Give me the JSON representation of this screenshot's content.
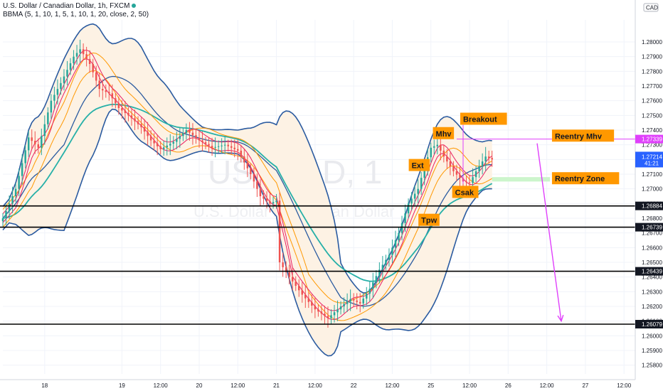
{
  "header": {
    "title": "U.S. Dollar / Canadian Dollar, 1h, FXCM",
    "indicator": "BBMA (5, 1, 10, 1, 5, 1, 10, 1, 20, close, 2, 50)"
  },
  "watermark": {
    "symbol": "USDCAD, 1",
    "name": "U.S. Dollar / Canadian Dollar"
  },
  "axis": {
    "currency": "CAD",
    "ymin": 1.2575,
    "ymax": 1.2815,
    "y_ticks": [
      "1.28000",
      "1.27900",
      "1.27800",
      "1.27700",
      "1.27600",
      "1.27500",
      "1.27400",
      "1.27300",
      "1.27200",
      "1.27100",
      "1.27000",
      "1.26900",
      "1.26800",
      "1.26700",
      "1.26600",
      "1.26500",
      "1.26400",
      "1.26300",
      "1.26200",
      "1.26100",
      "1.26000",
      "1.25900",
      "1.25800"
    ],
    "x_ticks": [
      "18",
      "19",
      "12:00",
      "20",
      "12:00",
      "21",
      "12:00",
      "22",
      "12:00",
      "25",
      "12:00",
      "26",
      "12:00",
      "27",
      "12:00"
    ],
    "x_tick_hours": [
      0,
      24,
      36,
      48,
      60,
      72,
      84,
      96,
      108,
      120,
      132,
      144,
      156,
      168,
      180
    ],
    "x_range_hours": [
      -13,
      181.5
    ]
  },
  "chart_data": {
    "type": "candlestick",
    "title": "U.S. Dollar / Canadian Dollar, 1h, FXCM",
    "xlabel": "",
    "ylabel": "",
    "close_path": [
      [
        -13,
        1.268
      ],
      [
        -9,
        1.27
      ],
      [
        -5,
        1.2735
      ],
      [
        -2,
        1.2728
      ],
      [
        2,
        1.276
      ],
      [
        5,
        1.2772
      ],
      [
        9,
        1.279
      ],
      [
        11,
        1.2795
      ],
      [
        14,
        1.2785
      ],
      [
        17,
        1.2768
      ],
      [
        20,
        1.2765
      ],
      [
        23,
        1.2755
      ],
      [
        26,
        1.275
      ],
      [
        30,
        1.2742
      ],
      [
        33,
        1.2733
      ],
      [
        36,
        1.2727
      ],
      [
        40,
        1.2732
      ],
      [
        44,
        1.274
      ],
      [
        48,
        1.2733
      ],
      [
        52,
        1.2728
      ],
      [
        56,
        1.273
      ],
      [
        60,
        1.2726
      ],
      [
        64,
        1.271
      ],
      [
        67,
        1.2695
      ],
      [
        70,
        1.269
      ],
      [
        72,
        1.2692
      ],
      [
        73,
        1.265
      ],
      [
        76,
        1.264
      ],
      [
        80,
        1.2628
      ],
      [
        84,
        1.2618
      ],
      [
        88,
        1.2612
      ],
      [
        92,
        1.262
      ],
      [
        95,
        1.2625
      ],
      [
        98,
        1.2622
      ],
      [
        101,
        1.2632
      ],
      [
        104,
        1.2645
      ],
      [
        107,
        1.2655
      ],
      [
        110,
        1.267
      ],
      [
        113,
        1.269
      ],
      [
        116,
        1.27
      ],
      [
        118,
        1.2715
      ],
      [
        120,
        1.2728
      ],
      [
        122,
        1.273
      ],
      [
        124,
        1.2722
      ],
      [
        127,
        1.2712
      ],
      [
        130,
        1.2705
      ],
      [
        132,
        1.2704
      ],
      [
        134,
        1.2712
      ],
      [
        137,
        1.2722
      ],
      [
        139,
        1.272
      ]
    ],
    "indicators": {
      "bollinger_middle": "20-period SMA of close",
      "bollinger_bands": "2 standard deviations",
      "ma_50": "50-period moving average"
    },
    "annotations": [
      {
        "text": "Breakout",
        "x": 130,
        "y": 1.27475
      },
      {
        "text": "Mhv",
        "x": 121.5,
        "y": 1.27377
      },
      {
        "text": "Ext",
        "x": 114,
        "y": 1.2716
      },
      {
        "text": "Csak",
        "x": 127.5,
        "y": 1.26977
      },
      {
        "text": "Tpw",
        "x": 117,
        "y": 1.26787
      },
      {
        "text": "Reentry Mhv",
        "x": 158.5,
        "y": 1.2736
      },
      {
        "text": "Reentry Zone",
        "x": 158.5,
        "y": 1.2707
      }
    ],
    "horizontal_levels": [
      {
        "price": 1.26884,
        "label": "1.26884"
      },
      {
        "price": 1.26739,
        "label": "1.26739"
      },
      {
        "price": 1.26439,
        "label": "1.26439"
      },
      {
        "price": 1.26079,
        "label": "1.26079"
      }
    ],
    "reentry_level": {
      "price": 1.27339,
      "label": "1.27339",
      "x_start": 128,
      "x_end": 181.5
    },
    "reentry_zone": {
      "y_top": 1.2708,
      "y_bottom": 1.2705,
      "x_start": 139,
      "x_end": 157
    },
    "breakout_marker": {
      "x": 130,
      "y_top": 1.27435,
      "y_bottom": 1.27035
    },
    "projection_arrow": {
      "x1": 153,
      "y1": 1.2731,
      "x2": 160.5,
      "y2": 1.261
    },
    "current_price": {
      "value": "1.27214",
      "countdown": "41:21",
      "price": 1.27214
    },
    "colors": {
      "up_candle": "#26a69a",
      "down_candle": "#ef5350",
      "bb_bands": "#2b5ba0",
      "bb_fill": "#fdf2e4",
      "bb_fill_low": "#e8f2fb",
      "ma_50": "#26b0a8",
      "orange_ma": "#ff9800",
      "magenta_ma": "#e91e63",
      "annotation_bg": "#ff9800",
      "reentry_line": "#e040fb",
      "zone": "#ccf5cc",
      "level_label_bg": "#131722",
      "reentry_label_bg": "#e040fb",
      "current_label_bg": "#2962ff"
    }
  }
}
